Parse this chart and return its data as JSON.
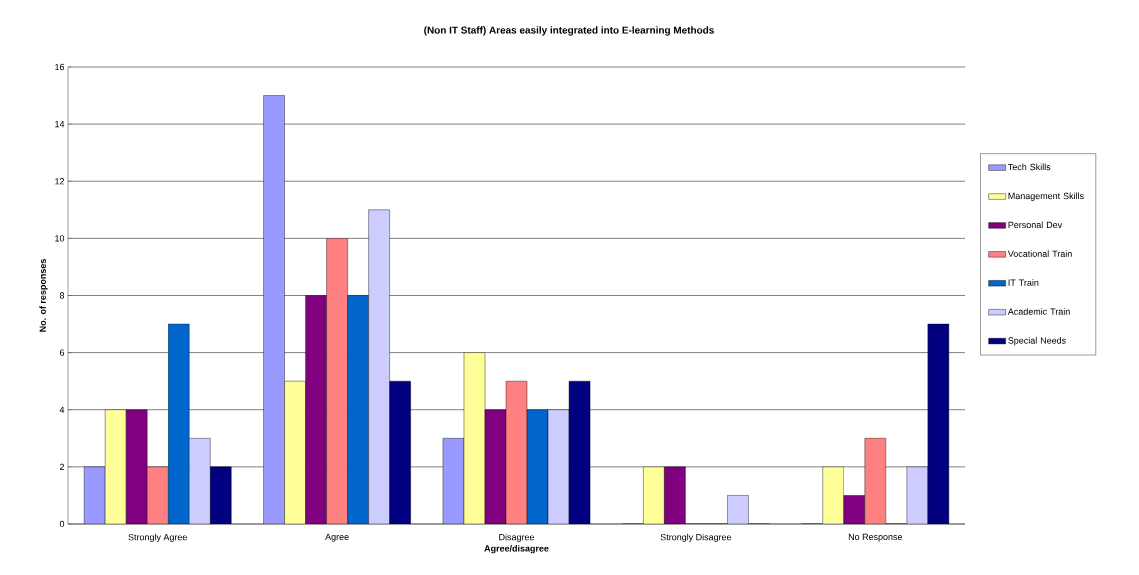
{
  "chart_data": {
    "type": "bar",
    "title": "(Non IT Staff) Areas easily integrated into E-learning Methods",
    "xlabel": "Agree/disagree",
    "ylabel": "No. of responses",
    "categories": [
      "Strongly Agree",
      "Agree",
      "Disagree",
      "Strongly Disagree",
      "No Response"
    ],
    "series": [
      {
        "name": "Tech Skills",
        "color": "#9999ff",
        "values": [
          2,
          15,
          3,
          0,
          0
        ]
      },
      {
        "name": "Management Skills",
        "color": "#ffff99",
        "values": [
          4,
          5,
          6,
          2,
          2
        ]
      },
      {
        "name": "Personal Dev",
        "color": "#800080",
        "values": [
          4,
          8,
          4,
          2,
          1
        ]
      },
      {
        "name": "Vocational Train",
        "color": "#ff8080",
        "values": [
          2,
          10,
          5,
          0,
          3
        ]
      },
      {
        "name": "IT Train",
        "color": "#0066cc",
        "values": [
          7,
          8,
          4,
          0,
          0
        ]
      },
      {
        "name": "Academic Train",
        "color": "#ccccff",
        "values": [
          3,
          11,
          4,
          1,
          2
        ]
      },
      {
        "name": "Special Needs",
        "color": "#000080",
        "values": [
          2,
          5,
          5,
          0,
          7
        ]
      }
    ],
    "ylim": [
      0,
      16
    ],
    "yticks": [
      0,
      2,
      4,
      6,
      8,
      10,
      12,
      14,
      16
    ],
    "grid": "y",
    "legend": "right"
  }
}
